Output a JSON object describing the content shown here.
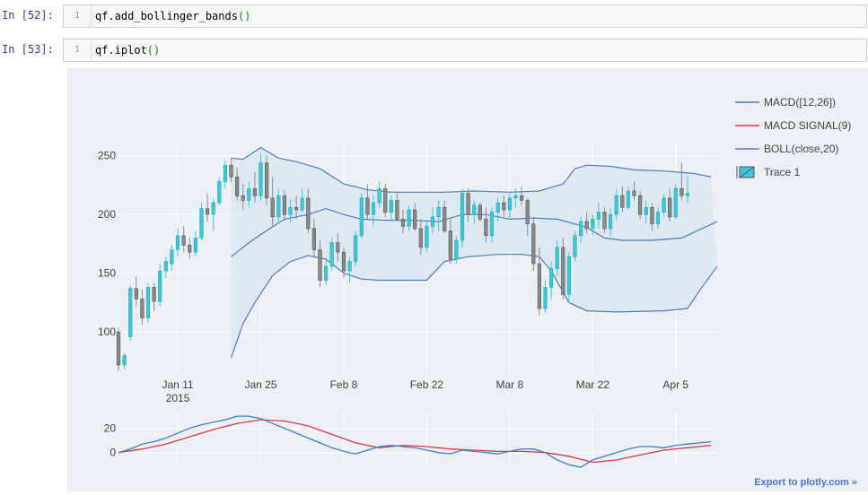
{
  "cells": [
    {
      "prompt": "In [52]:",
      "line_number": "1",
      "code_call": "qf.add_bollinger_bands",
      "code_parens": "()"
    },
    {
      "prompt": "In [53]:",
      "line_number": "1",
      "code_call": "qf.iplot",
      "code_parens": "()"
    }
  ],
  "export_link": "Export to plotly.com »",
  "colors": {
    "up": "#3dc8d8",
    "down": "#8a8a8a",
    "boll": "#4a80c0",
    "macd": "#3f7fc9",
    "signal": "#e0344d",
    "band_fill": "#dce6f2",
    "bg": "#ecf0f6"
  },
  "chart_data": [
    {
      "type": "candlestick",
      "title": "",
      "xlabel": "",
      "ylabel": "",
      "ylim": [
        65,
        262
      ],
      "x_tick_labels": [
        "Jan 11\n2015",
        "Jan 25",
        "Feb 8",
        "Feb 22",
        "Mar 8",
        "Mar 22",
        "Apr 5"
      ],
      "x_tick_days": [
        10,
        24,
        38,
        52,
        66,
        80,
        94
      ],
      "y_ticks": [
        100,
        150,
        200,
        250
      ],
      "day_range": [
        0,
        101
      ],
      "candles_ohlc": [
        [
          100,
          104,
          67,
          72
        ],
        [
          72,
          82,
          68,
          80
        ],
        [
          96,
          140,
          93,
          137
        ],
        [
          137,
          147,
          122,
          128
        ],
        [
          128,
          136,
          106,
          112
        ],
        [
          112,
          142,
          108,
          138
        ],
        [
          138,
          142,
          118,
          126
        ],
        [
          126,
          158,
          122,
          152
        ],
        [
          152,
          164,
          146,
          160
        ],
        [
          158,
          174,
          152,
          170
        ],
        [
          170,
          188,
          164,
          182
        ],
        [
          182,
          190,
          168,
          174
        ],
        [
          174,
          180,
          162,
          168
        ],
        [
          168,
          186,
          164,
          180
        ],
        [
          180,
          210,
          178,
          205
        ],
        [
          205,
          218,
          194,
          200
        ],
        [
          200,
          214,
          186,
          210
        ],
        [
          210,
          232,
          208,
          228
        ],
        [
          228,
          246,
          222,
          242
        ],
        [
          242,
          248,
          228,
          232
        ],
        [
          232,
          240,
          212,
          216
        ],
        [
          216,
          226,
          204,
          212
        ],
        [
          212,
          228,
          206,
          222
        ],
        [
          222,
          236,
          210,
          216
        ],
        [
          216,
          252,
          212,
          244
        ],
        [
          244,
          250,
          208,
          214
        ],
        [
          214,
          232,
          190,
          198
        ],
        [
          198,
          222,
          194,
          216
        ],
        [
          216,
          221,
          195,
          200
        ],
        [
          200,
          213,
          193,
          206
        ],
        [
          206,
          216,
          196,
          204
        ],
        [
          204,
          222,
          202,
          214
        ],
        [
          214,
          222,
          184,
          188
        ],
        [
          188,
          196,
          164,
          170
        ],
        [
          170,
          178,
          138,
          144
        ],
        [
          144,
          162,
          140,
          156
        ],
        [
          156,
          180,
          152,
          176
        ],
        [
          176,
          184,
          160,
          168
        ],
        [
          168,
          172,
          146,
          152
        ],
        [
          152,
          164,
          142,
          160
        ],
        [
          160,
          186,
          156,
          182
        ],
        [
          182,
          218,
          180,
          214
        ],
        [
          214,
          226,
          196,
          200
        ],
        [
          200,
          216,
          190,
          210
        ],
        [
          210,
          228,
          206,
          222
        ],
        [
          222,
          226,
          198,
          202
        ],
        [
          202,
          216,
          196,
          212
        ],
        [
          212,
          218,
          194,
          196
        ],
        [
          196,
          204,
          184,
          190
        ],
        [
          190,
          208,
          186,
          204
        ],
        [
          204,
          210,
          186,
          188
        ],
        [
          188,
          196,
          166,
          172
        ],
        [
          172,
          194,
          168,
          190
        ],
        [
          190,
          206,
          184,
          198
        ],
        [
          198,
          212,
          186,
          206
        ],
        [
          206,
          212,
          184,
          186
        ],
        [
          186,
          196,
          158,
          162
        ],
        [
          162,
          182,
          158,
          178
        ],
        [
          178,
          222,
          172,
          218
        ],
        [
          218,
          222,
          194,
          200
        ],
        [
          200,
          212,
          192,
          208
        ],
        [
          208,
          210,
          194,
          196
        ],
        [
          196,
          206,
          176,
          182
        ],
        [
          182,
          206,
          176,
          202
        ],
        [
          202,
          214,
          194,
          210
        ],
        [
          210,
          216,
          198,
          204
        ],
        [
          204,
          218,
          196,
          214
        ],
        [
          214,
          222,
          206,
          216
        ],
        [
          216,
          224,
          208,
          212
        ],
        [
          212,
          214,
          182,
          192
        ],
        [
          192,
          198,
          152,
          158
        ],
        [
          158,
          172,
          114,
          120
        ],
        [
          120,
          144,
          116,
          138
        ],
        [
          138,
          160,
          128,
          154
        ],
        [
          154,
          178,
          148,
          172
        ],
        [
          172,
          180,
          128,
          132
        ],
        [
          132,
          168,
          126,
          164
        ],
        [
          164,
          186,
          160,
          182
        ],
        [
          182,
          198,
          176,
          194
        ],
        [
          194,
          202,
          184,
          188
        ],
        [
          188,
          200,
          182,
          196
        ],
        [
          196,
          210,
          188,
          202
        ],
        [
          202,
          206,
          184,
          188
        ],
        [
          188,
          206,
          182,
          200
        ],
        [
          200,
          222,
          196,
          216
        ],
        [
          216,
          224,
          202,
          206
        ],
        [
          206,
          224,
          204,
          220
        ],
        [
          220,
          228,
          212,
          216
        ],
        [
          216,
          220,
          196,
          200
        ],
        [
          200,
          212,
          192,
          206
        ],
        [
          206,
          210,
          186,
          192
        ],
        [
          192,
          206,
          188,
          202
        ],
        [
          202,
          218,
          198,
          214
        ],
        [
          214,
          222,
          194,
          198
        ],
        [
          198,
          226,
          196,
          222
        ],
        [
          222,
          244,
          212,
          216
        ],
        [
          216,
          232,
          210,
          218
        ]
      ],
      "candle_start_day": 0,
      "boll_mid": [
        [
          19,
          164
        ],
        [
          22,
          176
        ],
        [
          24,
          183
        ],
        [
          28,
          196
        ],
        [
          32,
          200
        ],
        [
          35,
          205
        ],
        [
          38,
          200
        ],
        [
          41,
          196
        ],
        [
          45,
          195
        ],
        [
          50,
          195
        ],
        [
          54,
          194
        ],
        [
          58,
          200
        ],
        [
          62,
          200
        ],
        [
          66,
          196
        ],
        [
          70,
          197
        ],
        [
          74,
          196
        ],
        [
          79,
          189
        ],
        [
          82,
          180
        ],
        [
          85,
          178
        ],
        [
          90,
          178
        ],
        [
          95,
          180
        ],
        [
          101,
          194
        ]
      ],
      "boll_upper": [
        [
          19,
          248
        ],
        [
          21,
          247
        ],
        [
          24,
          257
        ],
        [
          27,
          248
        ],
        [
          30,
          245
        ],
        [
          34,
          239
        ],
        [
          38,
          226
        ],
        [
          42,
          221
        ],
        [
          46,
          219
        ],
        [
          51,
          219
        ],
        [
          55,
          219
        ],
        [
          60,
          220
        ],
        [
          66,
          219
        ],
        [
          71,
          220
        ],
        [
          75,
          226
        ],
        [
          77,
          239
        ],
        [
          79,
          242
        ],
        [
          83,
          241
        ],
        [
          87,
          238
        ],
        [
          92,
          237
        ],
        [
          97,
          235
        ],
        [
          100,
          232
        ]
      ],
      "boll_lower": [
        [
          19,
          78
        ],
        [
          21,
          107
        ],
        [
          23,
          125
        ],
        [
          26,
          148
        ],
        [
          29,
          160
        ],
        [
          32,
          165
        ],
        [
          35,
          162
        ],
        [
          38,
          150
        ],
        [
          41,
          145
        ],
        [
          44,
          144
        ],
        [
          48,
          144
        ],
        [
          52,
          144
        ],
        [
          55,
          160
        ],
        [
          59,
          164
        ],
        [
          64,
          166
        ],
        [
          68,
          166
        ],
        [
          71,
          164
        ],
        [
          73,
          152
        ],
        [
          76,
          125
        ],
        [
          79,
          118
        ],
        [
          84,
          117
        ],
        [
          92,
          118
        ],
        [
          96,
          120
        ],
        [
          98,
          135
        ],
        [
          101,
          156
        ]
      ],
      "legend": [
        {
          "name": "MACD([12,26])",
          "kind": "line",
          "color": "#4a80c0"
        },
        {
          "name": "MACD SIGNAL(9)",
          "kind": "line",
          "color": "#e0344d"
        },
        {
          "name": "BOLL(close,20)",
          "kind": "line",
          "color": "#4a80c0"
        },
        {
          "name": "Trace 1",
          "kind": "candle",
          "color": "#3dc8d8"
        }
      ]
    },
    {
      "type": "line",
      "title": "",
      "ylim": [
        -12,
        33
      ],
      "y_ticks": [
        0,
        20
      ],
      "series": [
        {
          "name": "MACD([12,26])",
          "points": [
            [
              0,
              0
            ],
            [
              2,
              3
            ],
            [
              4,
              7
            ],
            [
              6,
              9
            ],
            [
              8,
              12
            ],
            [
              10,
              16
            ],
            [
              12,
              20
            ],
            [
              14,
              23
            ],
            [
              16,
              25
            ],
            [
              18,
              27
            ],
            [
              20,
              30
            ],
            [
              22,
              30
            ],
            [
              24,
              28
            ],
            [
              26,
              24
            ],
            [
              28,
              20
            ],
            [
              30,
              16
            ],
            [
              32,
              12
            ],
            [
              34,
              8
            ],
            [
              36,
              4
            ],
            [
              38,
              1
            ],
            [
              40,
              -1
            ],
            [
              42,
              2
            ],
            [
              44,
              5
            ],
            [
              46,
              6
            ],
            [
              48,
              5
            ],
            [
              50,
              4
            ],
            [
              52,
              2
            ],
            [
              54,
              0
            ],
            [
              56,
              -1
            ],
            [
              58,
              2
            ],
            [
              60,
              1
            ],
            [
              62,
              0
            ],
            [
              64,
              -1
            ],
            [
              66,
              1
            ],
            [
              68,
              3
            ],
            [
              70,
              3
            ],
            [
              72,
              0
            ],
            [
              74,
              -6
            ],
            [
              76,
              -10
            ],
            [
              78,
              -12
            ],
            [
              80,
              -6
            ],
            [
              82,
              -3
            ],
            [
              84,
              0
            ],
            [
              86,
              3
            ],
            [
              88,
              5
            ],
            [
              90,
              5
            ],
            [
              92,
              4
            ],
            [
              94,
              6
            ],
            [
              96,
              7
            ],
            [
              98,
              8
            ],
            [
              100,
              9
            ]
          ]
        },
        {
          "name": "MACD SIGNAL(9)",
          "points": [
            [
              0,
              0
            ],
            [
              4,
              3
            ],
            [
              8,
              7
            ],
            [
              12,
              13
            ],
            [
              16,
              19
            ],
            [
              20,
              24
            ],
            [
              24,
              27
            ],
            [
              28,
              26
            ],
            [
              32,
              22
            ],
            [
              36,
              15
            ],
            [
              40,
              8
            ],
            [
              44,
              4
            ],
            [
              48,
              6
            ],
            [
              52,
              5
            ],
            [
              56,
              3
            ],
            [
              60,
              2
            ],
            [
              64,
              1
            ],
            [
              68,
              1
            ],
            [
              72,
              0
            ],
            [
              76,
              -3
            ],
            [
              80,
              -8
            ],
            [
              84,
              -6
            ],
            [
              88,
              -2
            ],
            [
              92,
              2
            ],
            [
              96,
              4
            ],
            [
              100,
              6
            ]
          ]
        }
      ]
    }
  ]
}
